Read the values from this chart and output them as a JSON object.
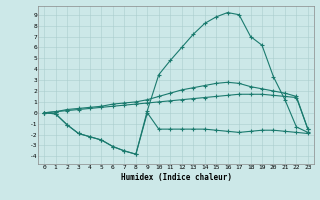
{
  "xlabel": "Humidex (Indice chaleur)",
  "bg_color": "#cce8e8",
  "line_color": "#1a7a6e",
  "grid_color": "#aacece",
  "xlim_min": -0.5,
  "xlim_max": 23.5,
  "ylim_min": -4.7,
  "ylim_max": 9.8,
  "xticks": [
    0,
    1,
    2,
    3,
    4,
    5,
    6,
    7,
    8,
    9,
    10,
    11,
    12,
    13,
    14,
    15,
    16,
    17,
    18,
    19,
    20,
    21,
    22,
    23
  ],
  "yticks": [
    -4,
    -3,
    -2,
    -1,
    0,
    1,
    2,
    3,
    4,
    5,
    6,
    7,
    8,
    9
  ],
  "lines": [
    {
      "x": [
        0,
        1,
        2,
        3,
        4,
        5,
        6,
        7,
        8,
        9,
        10,
        11,
        12,
        13,
        14,
        15,
        16,
        17,
        18,
        19,
        20,
        21,
        22,
        23
      ],
      "y": [
        0.0,
        -0.1,
        -1.1,
        -1.9,
        -2.2,
        -2.5,
        -3.1,
        -3.5,
        -3.8,
        0.0,
        -1.5,
        -1.5,
        -1.5,
        -1.5,
        -1.5,
        -1.6,
        -1.7,
        -1.8,
        -1.7,
        -1.6,
        -1.6,
        -1.7,
        -1.8,
        -1.9
      ]
    },
    {
      "x": [
        0,
        1,
        2,
        3,
        4,
        5,
        6,
        7,
        8,
        9,
        10,
        11,
        12,
        13,
        14,
        15,
        16,
        17,
        18,
        19,
        20,
        21,
        22,
        23
      ],
      "y": [
        0.0,
        0.1,
        0.2,
        0.3,
        0.4,
        0.5,
        0.6,
        0.7,
        0.8,
        0.9,
        1.0,
        1.1,
        1.2,
        1.3,
        1.4,
        1.5,
        1.6,
        1.7,
        1.7,
        1.7,
        1.6,
        1.5,
        1.4,
        -1.5
      ]
    },
    {
      "x": [
        0,
        1,
        2,
        3,
        4,
        5,
        6,
        7,
        8,
        9,
        10,
        11,
        12,
        13,
        14,
        15,
        16,
        17,
        18,
        19,
        20,
        21,
        22,
        23
      ],
      "y": [
        0.0,
        0.1,
        0.3,
        0.4,
        0.5,
        0.6,
        0.8,
        0.9,
        1.0,
        1.2,
        1.5,
        1.8,
        2.1,
        2.3,
        2.5,
        2.7,
        2.8,
        2.7,
        2.4,
        2.2,
        2.0,
        1.8,
        1.5,
        -1.5
      ]
    },
    {
      "x": [
        0,
        1,
        2,
        3,
        4,
        5,
        6,
        7,
        8,
        9,
        10,
        11,
        12,
        13,
        14,
        15,
        16,
        17,
        18,
        19,
        20,
        21,
        22,
        23
      ],
      "y": [
        0.0,
        -0.1,
        -1.1,
        -1.9,
        -2.2,
        -2.5,
        -3.1,
        -3.5,
        -3.8,
        0.2,
        3.5,
        4.8,
        6.0,
        7.2,
        8.2,
        8.8,
        9.2,
        9.0,
        7.0,
        6.2,
        3.3,
        1.2,
        -1.3,
        -1.8
      ]
    }
  ],
  "figwidth": 3.2,
  "figheight": 2.0,
  "dpi": 100
}
